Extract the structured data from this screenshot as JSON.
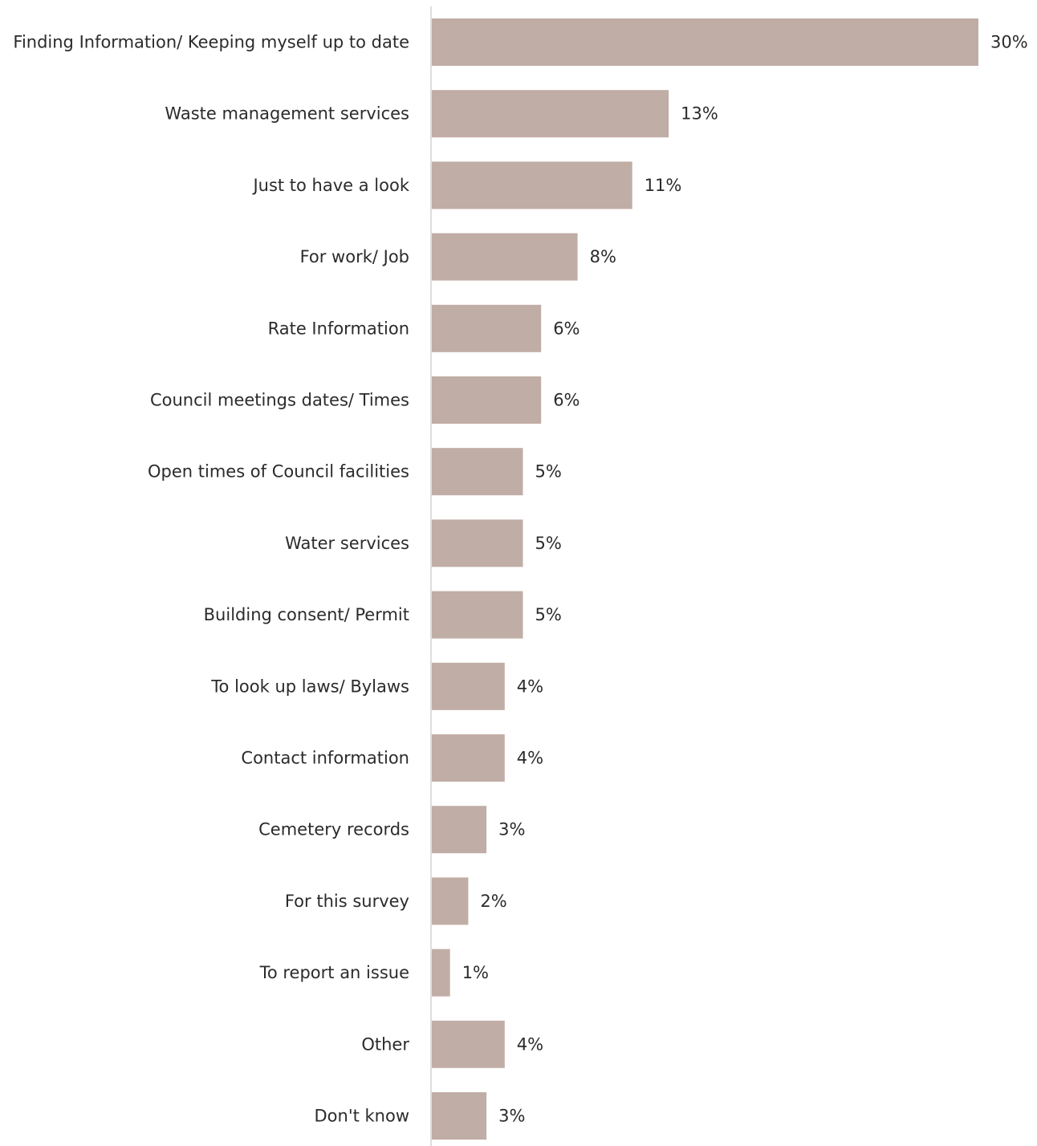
{
  "chart_data": {
    "type": "bar",
    "orientation": "horizontal",
    "title": "",
    "xlabel": "",
    "ylabel": "",
    "categories": [
      "Finding Information/ Keeping myself up to date",
      "Waste management services",
      "Just to have a look",
      "For work/ Job",
      "Rate Information",
      "Council meetings dates/ Times",
      "Open times of Council facilities",
      "Water services",
      "Building consent/ Permit",
      "To look up laws/ Bylaws",
      "Contact information",
      "Cemetery records",
      "For this survey",
      "To report an issue",
      "Other",
      "Don't know"
    ],
    "values": [
      30,
      13,
      11,
      8,
      6,
      6,
      5,
      5,
      5,
      4,
      4,
      3,
      2,
      1,
      4,
      3
    ],
    "value_labels": [
      "30%",
      "13%",
      "11%",
      "8%",
      "6%",
      "6%",
      "5%",
      "5%",
      "5%",
      "4%",
      "4%",
      "3%",
      "2%",
      "1%",
      "4%",
      "3%"
    ],
    "unit": "%",
    "xlim": [
      0,
      30
    ],
    "grid": false,
    "legend": "none",
    "colors": {
      "bar": "#c0ada5",
      "axis": "#d4d4d4",
      "text": "#2b2b2b"
    }
  }
}
